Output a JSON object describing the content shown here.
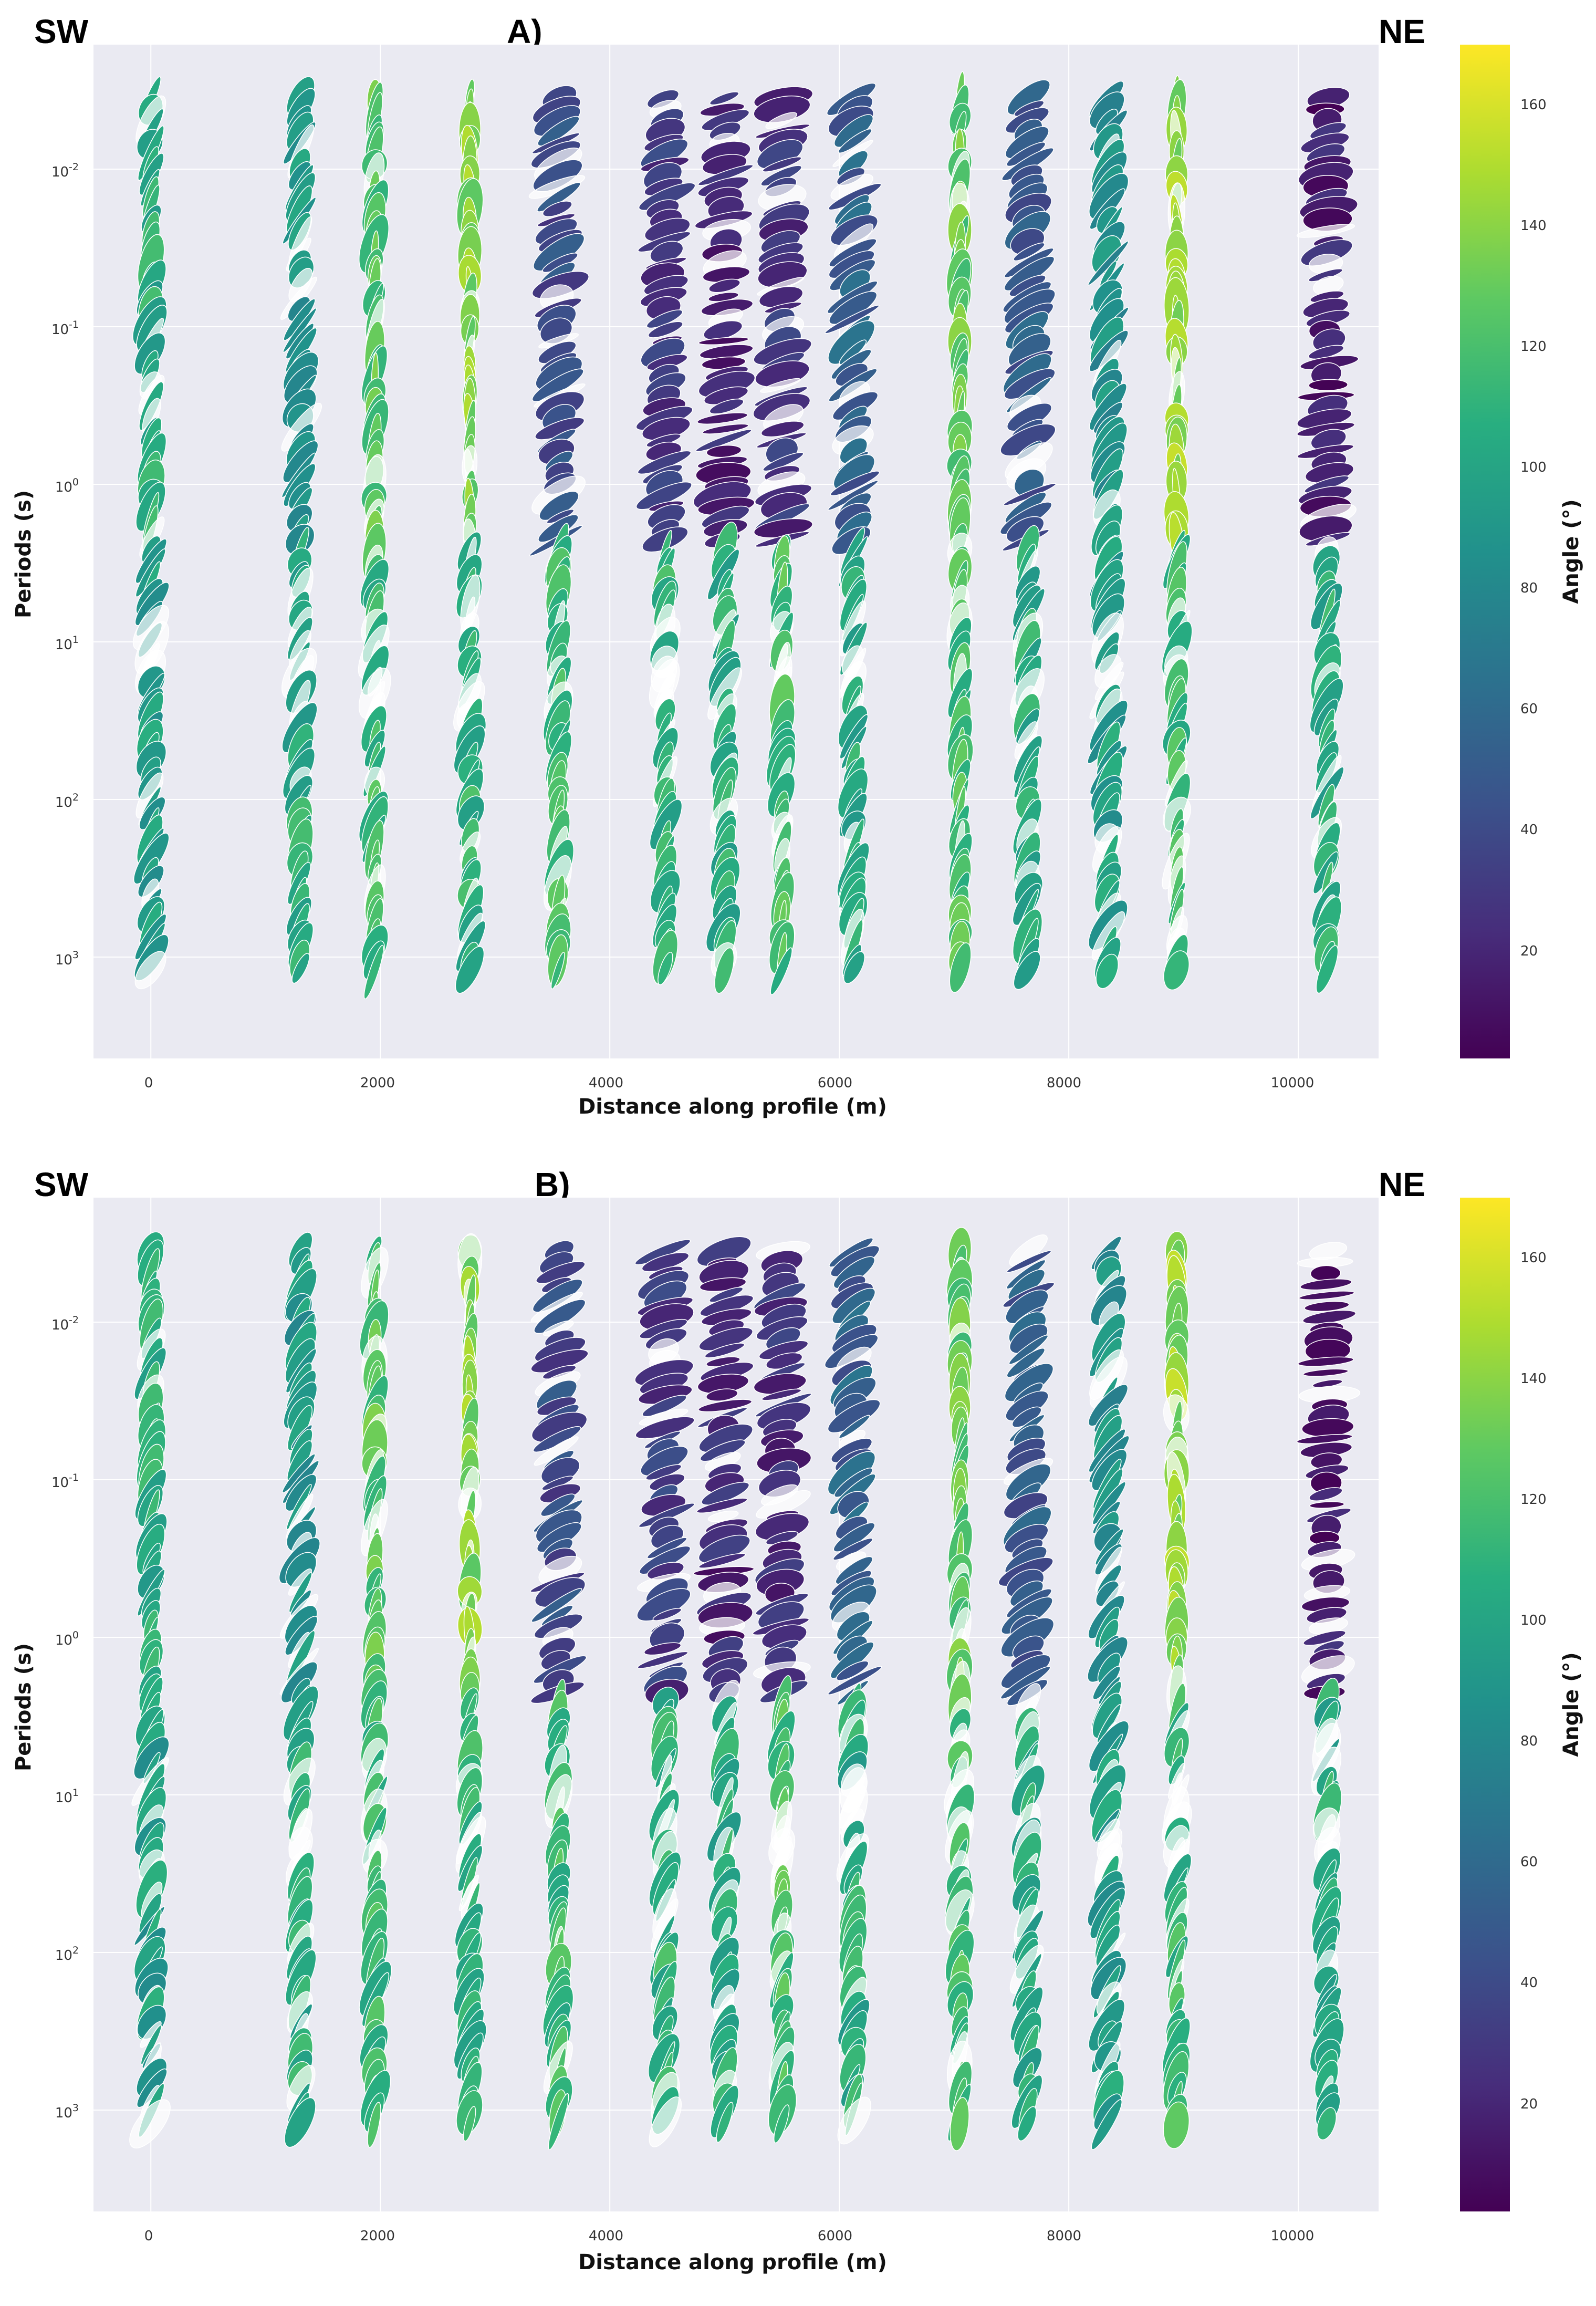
{
  "figure": {
    "left_label": "SW",
    "right_label": "NE",
    "xlabel": "Distance along profile (m)",
    "ylabel": "Periods (s)",
    "colorbar_label": "Angle (°)"
  },
  "x_ticks": [
    "0",
    "2000",
    "4000",
    "6000",
    "8000",
    "10000"
  ],
  "y_ticks": [
    {
      "base": "10",
      "exp": "-2"
    },
    {
      "base": "10",
      "exp": "-1"
    },
    {
      "base": "10",
      "exp": "0"
    },
    {
      "base": "10",
      "exp": "1"
    },
    {
      "base": "10",
      "exp": "2"
    },
    {
      "base": "10",
      "exp": "3"
    }
  ],
  "colorbar_ticks": [
    "20",
    "40",
    "60",
    "80",
    "100",
    "120",
    "140",
    "160"
  ],
  "colors": {
    "plot_bg": "#EAEAF2",
    "grid": "#FFFFFF",
    "colormap": "viridis"
  },
  "chart_data": [
    {
      "type": "scatter",
      "panel_label": "A)",
      "description_marks": "phase tensor ellipses",
      "xlim": [
        -500,
        10700
      ],
      "ylim_log10": [
        3.6,
        -1.8
      ],
      "colorbar_range": [
        0,
        180
      ],
      "grid": true,
      "stations_x": [
        0,
        1300,
        1950,
        2780,
        3550,
        4480,
        5000,
        5500,
        6120,
        7050,
        7640,
        8340,
        8940,
        10250
      ]
    },
    {
      "type": "scatter",
      "panel_label": "B)",
      "description_marks": "phase tensor ellipses",
      "xlim": [
        -500,
        10700
      ],
      "ylim_log10": [
        3.6,
        -1.8
      ],
      "colorbar_range": [
        0,
        180
      ],
      "grid": true,
      "stations_x": [
        0,
        1300,
        1950,
        2780,
        3550,
        4480,
        5000,
        5500,
        6120,
        7050,
        7640,
        8340,
        8940,
        10250
      ]
    }
  ]
}
